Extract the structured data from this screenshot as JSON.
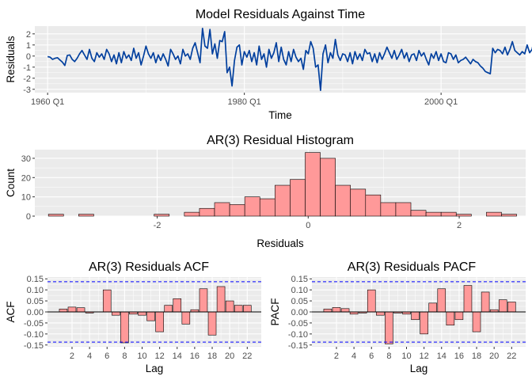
{
  "chart_data": [
    {
      "id": "timeplot",
      "type": "line",
      "title": "Model Residuals Against Time",
      "xlabel": "Time",
      "ylabel": "Residuals",
      "xlim": [
        1958.7,
        2008.6
      ],
      "ylim": [
        -3.3,
        2.7
      ],
      "x_ticks": [
        {
          "value": 1960,
          "label": "1960 Q1"
        },
        {
          "value": 1980,
          "label": "1980 Q1"
        },
        {
          "value": 2000,
          "label": "2000 Q1"
        }
      ],
      "y_ticks": [
        -3,
        -2,
        -1,
        0,
        1,
        2
      ],
      "grid": true,
      "series": [
        {
          "color": "#003f9e",
          "x_start": 1960.0,
          "x_step": 0.25,
          "values": [
            -0.05,
            -0.1,
            -0.3,
            -0.2,
            -0.15,
            -0.35,
            -0.55,
            -0.85,
            0.05,
            0.1,
            -0.3,
            -0.5,
            -0.2,
            0.2,
            0.5,
            0.1,
            -0.3,
            0.6,
            -0.2,
            -0.5,
            0.3,
            -0.1,
            0.2,
            -0.3,
            0.6,
            0.2,
            -0.5,
            0.1,
            -0.7,
            0.3,
            -0.6,
            0.4,
            -0.2,
            0.1,
            -0.4,
            0.7,
            -0.2,
            0.3,
            -0.8,
            0.0,
            0.9,
            0.2,
            -0.2,
            0.3,
            -0.6,
            0.1,
            -0.4,
            0.2,
            -0.3,
            -0.9,
            0.6,
            0.2,
            -0.3,
            0.0,
            -0.7,
            0.6,
            0.0,
            0.2,
            -0.3,
            0.7,
            1.2,
            0.3,
            -0.6,
            2.5,
            0.9,
            0.7,
            2.4,
            0.2,
            1.1,
            -0.2,
            1.4,
            1.3,
            2.2,
            -1.5,
            -1.0,
            -2.7,
            -0.4,
            0.8,
            1.0,
            -0.8,
            0.4,
            -0.1,
            0.5,
            -0.5,
            0.3,
            -0.8,
            0.9,
            -0.3,
            0.2,
            -1.0,
            0.6,
            -0.2,
            0.3,
            1.2,
            -0.5,
            0.8,
            -0.3,
            -0.8,
            0.4,
            -0.5,
            0.6,
            -0.1,
            -0.5,
            -0.2,
            -1.2,
            0.5,
            0.2,
            1.3,
            0.7,
            -1.0,
            -0.8,
            -3.1,
            0.2,
            1.0,
            -0.6,
            0.3,
            -0.2,
            1.5,
            0.1,
            -0.4,
            0.2,
            0.1,
            -0.5,
            0.3,
            -0.7,
            0.4,
            -0.3,
            0.2,
            -0.4,
            0.6,
            0.2,
            0.3,
            -0.5,
            0.2,
            -0.6,
            0.3,
            -0.3,
            0.2,
            0.8,
            0.3,
            -0.2,
            0.5,
            -0.3,
            0.1,
            0.6,
            -0.2,
            0.3,
            -0.5,
            0.1,
            0.2,
            -0.4,
            0.5,
            0.0,
            0.3,
            -0.3,
            -0.8,
            0.2,
            -0.2,
            0.4,
            -0.4,
            0.2,
            -0.5,
            -0.6,
            0.3,
            0.2,
            -0.3,
            0.1,
            -0.6,
            -0.4,
            -0.3,
            -0.1,
            -0.4,
            -0.7,
            -0.3,
            -0.5,
            -0.6,
            -0.9,
            -1.1,
            -1.4,
            -1.5,
            -1.6,
            0.7,
            0.3,
            0.6,
            0.5,
            0.2,
            0.8,
            0.1,
            0.6,
            1.3,
            0.5,
            0.3,
            0.1,
            0.4,
            0.2,
            1.0,
            0.3,
            0.6,
            1.7,
            0.4,
            -0.6,
            0.5,
            2.0,
            -0.1,
            0.4,
            0.0
          ]
        }
      ]
    },
    {
      "id": "histogram",
      "type": "bar",
      "title": "AR(3) Residual Histogram",
      "xlabel": "Residuals",
      "ylabel": "Count",
      "xlim": [
        -3.62,
        2.88
      ],
      "ylim": [
        0,
        34.5
      ],
      "x_ticks": [
        -2,
        0,
        2
      ],
      "y_ticks": [
        0,
        10,
        20,
        30
      ],
      "grid": true,
      "fill": "#ff9999",
      "bins": [
        {
          "x0": -3.44,
          "x1": -3.24,
          "count": 1
        },
        {
          "x0": -3.24,
          "x1": -3.04,
          "count": 0
        },
        {
          "x0": -3.04,
          "x1": -2.84,
          "count": 1
        },
        {
          "x0": -2.84,
          "x1": -2.64,
          "count": 0
        },
        {
          "x0": -2.64,
          "x1": -2.44,
          "count": 0
        },
        {
          "x0": -2.44,
          "x1": -2.24,
          "count": 0
        },
        {
          "x0": -2.24,
          "x1": -2.04,
          "count": 0
        },
        {
          "x0": -2.04,
          "x1": -1.84,
          "count": 1
        },
        {
          "x0": -1.84,
          "x1": -1.64,
          "count": 0
        },
        {
          "x0": -1.64,
          "x1": -1.44,
          "count": 2
        },
        {
          "x0": -1.44,
          "x1": -1.24,
          "count": 4
        },
        {
          "x0": -1.24,
          "x1": -1.04,
          "count": 7
        },
        {
          "x0": -1.04,
          "x1": -0.84,
          "count": 6
        },
        {
          "x0": -0.84,
          "x1": -0.64,
          "count": 10
        },
        {
          "x0": -0.64,
          "x1": -0.44,
          "count": 9
        },
        {
          "x0": -0.44,
          "x1": -0.24,
          "count": 16
        },
        {
          "x0": -0.24,
          "x1": -0.04,
          "count": 19
        },
        {
          "x0": -0.04,
          "x1": 0.16,
          "count": 33
        },
        {
          "x0": 0.16,
          "x1": 0.36,
          "count": 30
        },
        {
          "x0": 0.36,
          "x1": 0.56,
          "count": 16
        },
        {
          "x0": 0.56,
          "x1": 0.76,
          "count": 14
        },
        {
          "x0": 0.76,
          "x1": 0.96,
          "count": 11
        },
        {
          "x0": 0.96,
          "x1": 1.16,
          "count": 7
        },
        {
          "x0": 1.16,
          "x1": 1.36,
          "count": 7
        },
        {
          "x0": 1.36,
          "x1": 1.56,
          "count": 3
        },
        {
          "x0": 1.56,
          "x1": 1.76,
          "count": 2
        },
        {
          "x0": 1.76,
          "x1": 1.96,
          "count": 2
        },
        {
          "x0": 1.96,
          "x1": 2.16,
          "count": 1
        },
        {
          "x0": 2.16,
          "x1": 2.36,
          "count": 0
        },
        {
          "x0": 2.36,
          "x1": 2.56,
          "count": 2
        },
        {
          "x0": 2.56,
          "x1": 2.76,
          "count": 1
        }
      ]
    },
    {
      "id": "acf",
      "type": "bar",
      "title": "AR(3) Residuals ACF",
      "xlabel": "Lag",
      "ylabel": "ACF",
      "xlim": [
        -0.8,
        23.6
      ],
      "ylim": [
        -0.158,
        0.158
      ],
      "x_ticks": [
        2,
        4,
        6,
        8,
        10,
        12,
        14,
        16,
        18,
        20,
        22
      ],
      "y_ticks": [
        {
          "value": -0.15,
          "label": "-0.15"
        },
        {
          "value": -0.1,
          "label": "-0.10"
        },
        {
          "value": -0.05,
          "label": "-0.05"
        },
        {
          "value": 0,
          "label": "0.00"
        },
        {
          "value": 0.05,
          "label": "0.05"
        },
        {
          "value": 0.1,
          "label": "0.10"
        },
        {
          "value": 0.15,
          "label": "0.15"
        }
      ],
      "grid": true,
      "fill": "#ff9999",
      "confidence_band": 0.137,
      "lags": [
        1,
        2,
        3,
        4,
        5,
        6,
        7,
        8,
        9,
        10,
        11,
        12,
        13,
        14,
        15,
        16,
        17,
        18,
        19,
        20,
        21,
        22
      ],
      "values": [
        0.013,
        0.022,
        0.019,
        -0.005,
        0.0,
        0.1,
        -0.015,
        -0.14,
        -0.01,
        -0.015,
        -0.04,
        -0.09,
        0.03,
        0.06,
        -0.055,
        0.01,
        0.105,
        -0.105,
        0.115,
        0.05,
        0.03,
        0.03
      ]
    },
    {
      "id": "pacf",
      "type": "bar",
      "title": "AR(3) Residuals PACF",
      "xlabel": "Lag",
      "ylabel": "PACF",
      "xlim": [
        -0.8,
        23.6
      ],
      "ylim": [
        -0.158,
        0.158
      ],
      "x_ticks": [
        2,
        4,
        6,
        8,
        10,
        12,
        14,
        16,
        18,
        20,
        22
      ],
      "y_ticks": [
        {
          "value": -0.15,
          "label": "-0.15"
        },
        {
          "value": -0.1,
          "label": "-0.10"
        },
        {
          "value": -0.05,
          "label": "-0.05"
        },
        {
          "value": 0,
          "label": "0.00"
        },
        {
          "value": 0.05,
          "label": "0.05"
        },
        {
          "value": 0.1,
          "label": "0.10"
        },
        {
          "value": 0.15,
          "label": "0.15"
        }
      ],
      "grid": true,
      "fill": "#ff9999",
      "confidence_band": 0.137,
      "lags": [
        1,
        2,
        3,
        4,
        5,
        6,
        7,
        8,
        9,
        10,
        11,
        12,
        13,
        14,
        15,
        16,
        17,
        18,
        19,
        20,
        21,
        22
      ],
      "values": [
        0.013,
        0.02,
        0.015,
        -0.01,
        -0.005,
        0.1,
        -0.015,
        -0.145,
        -0.005,
        -0.01,
        -0.035,
        -0.1,
        0.04,
        0.105,
        -0.06,
        -0.035,
        0.12,
        -0.09,
        0.09,
        0.01,
        0.055,
        0.045
      ]
    }
  ]
}
